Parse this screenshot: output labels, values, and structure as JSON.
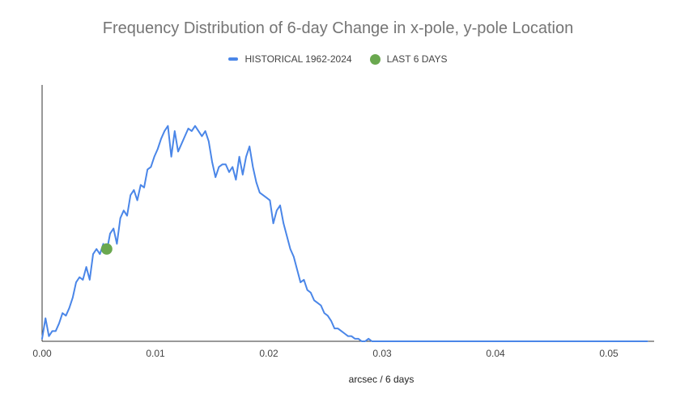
{
  "chart_data": {
    "type": "line",
    "title": "Frequency Distribution of 6-day Change in x-pole, y-pole Location",
    "xlabel": "arcsec / 6 days",
    "ylabel": "",
    "xlim": [
      0,
      0.054
    ],
    "ylim": [
      0,
      1
    ],
    "x_ticks": [
      "0.00",
      "0.01",
      "0.02",
      "0.03",
      "0.04",
      "0.05"
    ],
    "x_tick_values": [
      0,
      0.01,
      0.02,
      0.03,
      0.04,
      0.05
    ],
    "legend": {
      "placement": "top",
      "items": [
        {
          "label": "HISTORICAL 1962-2024",
          "color": "#4A86E8",
          "marker": "line"
        },
        {
          "label": "LAST 6 DAYS",
          "color": "#6AA84F",
          "marker": "dot"
        }
      ]
    },
    "series": [
      {
        "name": "HISTORICAL 1962-2024",
        "color": "#4A86E8",
        "x": [
          0,
          0.0003,
          0.0006,
          0.0009,
          0.0012,
          0.0015,
          0.0018,
          0.0021,
          0.0024,
          0.0027,
          0.003,
          0.0033,
          0.0036,
          0.0039,
          0.0042,
          0.0045,
          0.0048,
          0.0051,
          0.0054,
          0.0057,
          0.006,
          0.0063,
          0.0066,
          0.0069,
          0.0072,
          0.0075,
          0.0078,
          0.0081,
          0.0084,
          0.0087,
          0.009,
          0.0093,
          0.0096,
          0.0099,
          0.0102,
          0.0105,
          0.0108,
          0.0111,
          0.0114,
          0.0117,
          0.012,
          0.0123,
          0.0126,
          0.0129,
          0.0132,
          0.0135,
          0.0138,
          0.0141,
          0.0144,
          0.0147,
          0.015,
          0.0153,
          0.0156,
          0.0159,
          0.0162,
          0.0165,
          0.0168,
          0.0171,
          0.0174,
          0.0177,
          0.018,
          0.0183,
          0.0186,
          0.0189,
          0.0192,
          0.0195,
          0.0198,
          0.0201,
          0.0204,
          0.0207,
          0.021,
          0.0213,
          0.0216,
          0.0219,
          0.0222,
          0.0225,
          0.0228,
          0.0231,
          0.0234,
          0.0237,
          0.024,
          0.0243,
          0.0246,
          0.0249,
          0.0252,
          0.0255,
          0.0258,
          0.0261,
          0.0264,
          0.0267,
          0.027,
          0.0273,
          0.0276,
          0.0279,
          0.0282,
          0.0285,
          0.0288,
          0.0291,
          0.0294,
          0.0297,
          0.03,
          0.0303,
          0.0306,
          0.0309,
          0.0312,
          0.032,
          0.033,
          0.034,
          0.035,
          0.036,
          0.038,
          0.04,
          0.042,
          0.044,
          0.046,
          0.048,
          0.05,
          0.052,
          0.0534
        ],
        "values": [
          0.01,
          0.09,
          0.02,
          0.04,
          0.04,
          0.07,
          0.11,
          0.1,
          0.13,
          0.17,
          0.23,
          0.25,
          0.24,
          0.29,
          0.24,
          0.34,
          0.36,
          0.34,
          0.38,
          0.35,
          0.42,
          0.44,
          0.38,
          0.48,
          0.51,
          0.49,
          0.57,
          0.59,
          0.55,
          0.61,
          0.6,
          0.67,
          0.68,
          0.72,
          0.75,
          0.79,
          0.82,
          0.84,
          0.72,
          0.82,
          0.74,
          0.77,
          0.8,
          0.83,
          0.82,
          0.84,
          0.82,
          0.8,
          0.82,
          0.78,
          0.7,
          0.64,
          0.68,
          0.69,
          0.69,
          0.66,
          0.68,
          0.63,
          0.72,
          0.65,
          0.72,
          0.76,
          0.68,
          0.62,
          0.58,
          0.57,
          0.56,
          0.55,
          0.46,
          0.51,
          0.53,
          0.46,
          0.41,
          0.36,
          0.33,
          0.28,
          0.23,
          0.24,
          0.2,
          0.19,
          0.16,
          0.15,
          0.14,
          0.11,
          0.1,
          0.08,
          0.05,
          0.05,
          0.04,
          0.03,
          0.02,
          0.02,
          0.01,
          0.01,
          0.0,
          0.0,
          0.01,
          0.0,
          0.0,
          0.0,
          0.0,
          0.0,
          0.0,
          0.0,
          0.0,
          0.0,
          0.0,
          0.0,
          0.0,
          0.0,
          0.0,
          0.0,
          0.0,
          0.0,
          0.0,
          0.0,
          0.0,
          0.0,
          0.0
        ]
      },
      {
        "name": "LAST 6 DAYS",
        "color": "#6AA84F",
        "x": [
          0.0057
        ],
        "values": [
          0.36
        ]
      }
    ],
    "grid": false
  }
}
